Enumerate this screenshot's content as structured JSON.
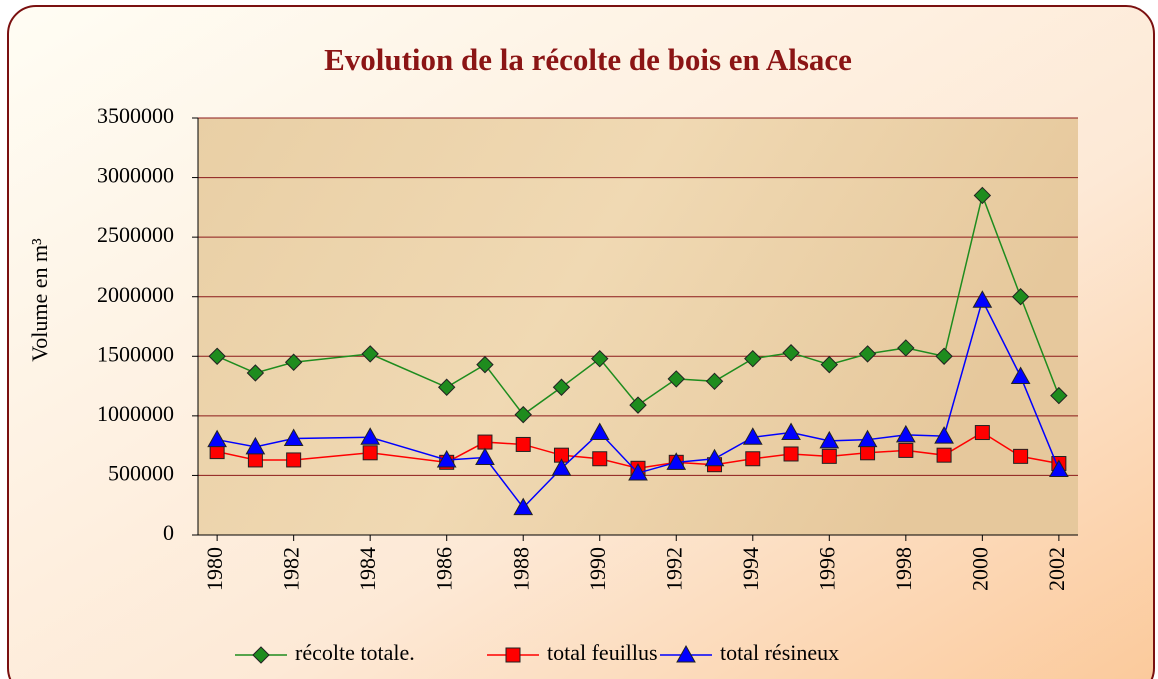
{
  "chart_data": {
    "type": "line",
    "title": "Evolution de la récolte de bois en Alsace",
    "ylabel": "Volume en m³",
    "x": [
      1980,
      1981,
      1982,
      1984,
      1986,
      1987,
      1988,
      1989,
      1990,
      1991,
      1992,
      1993,
      1994,
      1995,
      1996,
      1997,
      1998,
      1999,
      2000,
      2001,
      2002
    ],
    "series": [
      {
        "name": "récolte totale.",
        "color": "#1e8c1e",
        "marker": "diamond",
        "values": [
          1500000,
          1360000,
          1450000,
          1520000,
          1240000,
          1430000,
          1010000,
          1240000,
          1480000,
          1090000,
          1310000,
          1290000,
          1480000,
          1530000,
          1430000,
          1520000,
          1570000,
          1500000,
          2850000,
          2000000,
          1170000
        ]
      },
      {
        "name": "total feuillus",
        "color": "#ff0000",
        "marker": "square",
        "values": [
          700000,
          630000,
          630000,
          690000,
          610000,
          780000,
          760000,
          670000,
          640000,
          560000,
          610000,
          590000,
          640000,
          680000,
          660000,
          690000,
          710000,
          670000,
          860000,
          660000,
          600000
        ]
      },
      {
        "name": "total résineux",
        "color": "#0000ff",
        "marker": "triangle",
        "values": [
          800000,
          740000,
          810000,
          820000,
          630000,
          650000,
          230000,
          560000,
          860000,
          520000,
          610000,
          640000,
          820000,
          860000,
          790000,
          800000,
          840000,
          830000,
          1970000,
          1330000,
          550000
        ]
      }
    ],
    "xlim": [
      1979.5,
      2002.5
    ],
    "xticks": [
      1980,
      1982,
      1984,
      1986,
      1988,
      1990,
      1992,
      1994,
      1996,
      1998,
      2000,
      2002
    ],
    "ylim": [
      0,
      3500000
    ],
    "yticks": [
      0,
      500000,
      1000000,
      1500000,
      2000000,
      2500000,
      3000000,
      3500000
    ],
    "grid": true,
    "legend": "bottom"
  }
}
